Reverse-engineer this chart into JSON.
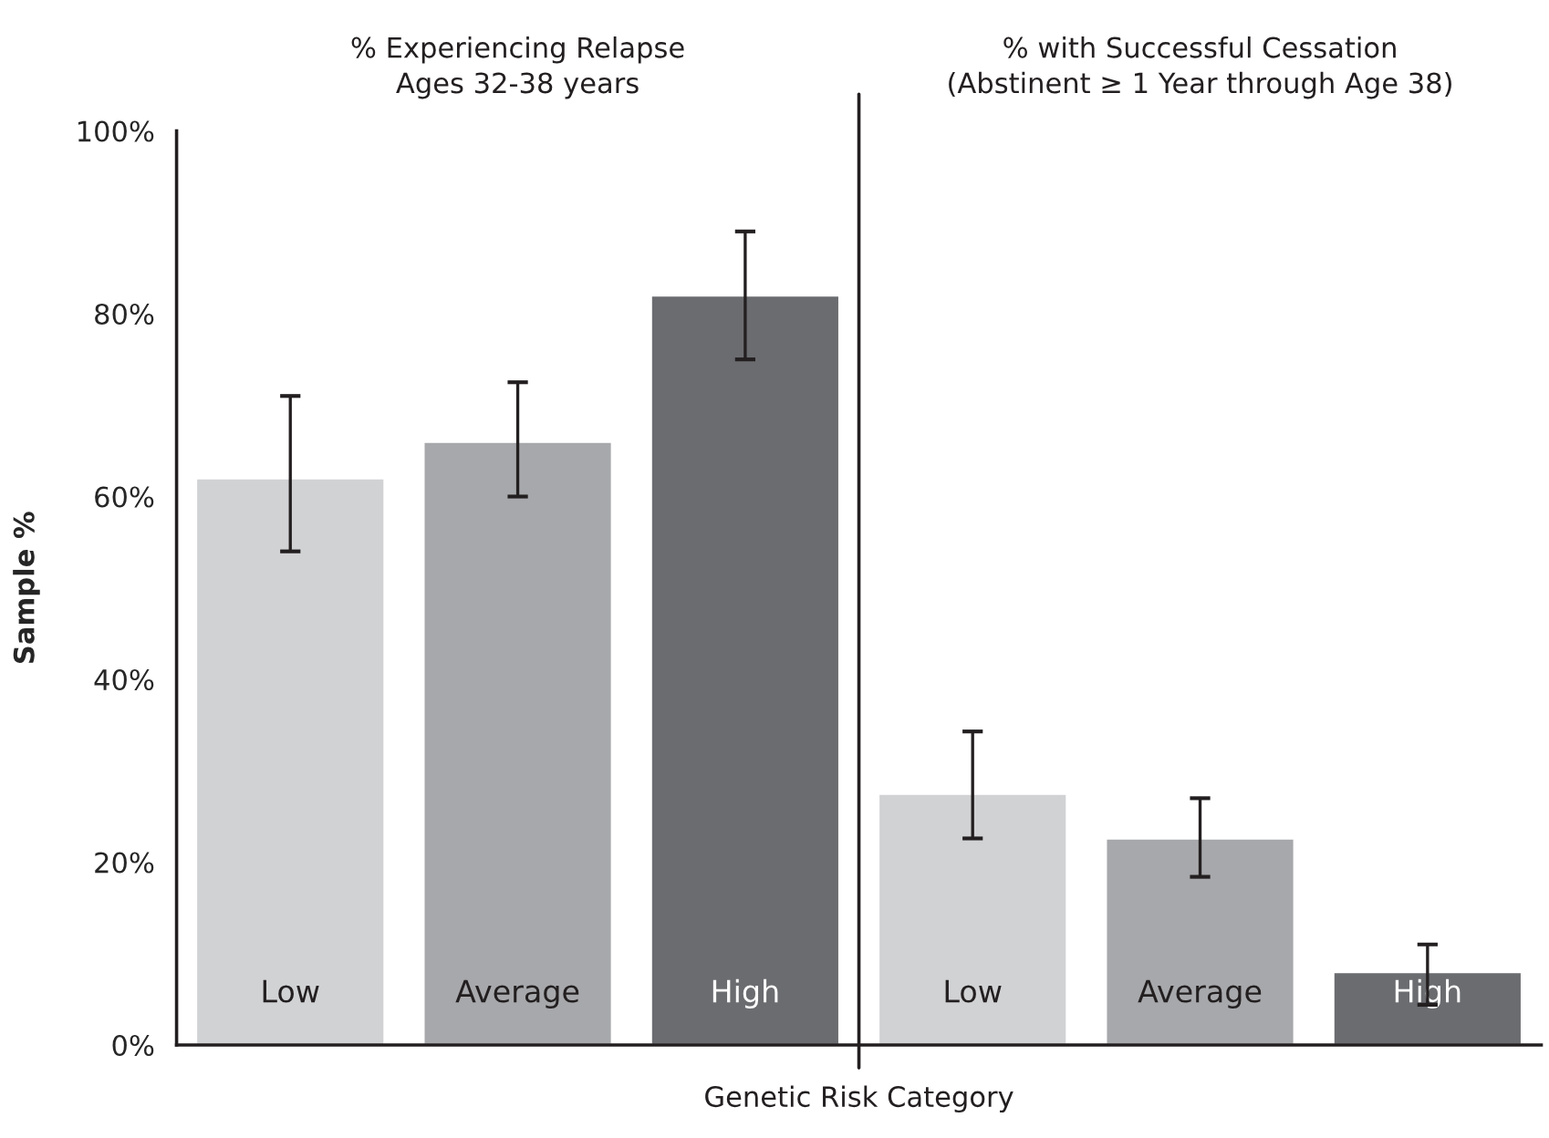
{
  "chart_data": {
    "type": "bar",
    "ylabel": "Sample %",
    "xlabel": "Genetic Risk Category",
    "annotations": [
      "% Experiencing Relapse\nAges 32-38 years",
      "% with Successful Cessation\n(Abstinent ≥ 1 Year through Age 38)"
    ],
    "categories": [
      "Low",
      "Average",
      "High",
      "Low",
      "Average",
      "High"
    ],
    "values": [
      62,
      66,
      82,
      27.5,
      22.6,
      8
    ],
    "colors": [
      "#d1d2d4",
      "#a7a8ab",
      "#6b6c70",
      "#d1d2d4",
      "#a7a8ab",
      "#6b6c70"
    ],
    "errors": [
      [
        54,
        71
      ],
      [
        60,
        72.5
      ],
      [
        75,
        89
      ],
      [
        22.6,
        34.3
      ],
      [
        18.4,
        27
      ],
      [
        4.4,
        11
      ]
    ],
    "ylim": [
      0,
      100
    ],
    "yticks": [
      {
        "value": 0,
        "label": "0%"
      },
      {
        "value": 20,
        "label": "20%"
      },
      {
        "value": 40,
        "label": "40%"
      },
      {
        "value": 60,
        "label": "60%"
      },
      {
        "value": 80,
        "label": "80%"
      },
      {
        "value": 100,
        "label": "100%"
      }
    ],
    "grid": false
  }
}
